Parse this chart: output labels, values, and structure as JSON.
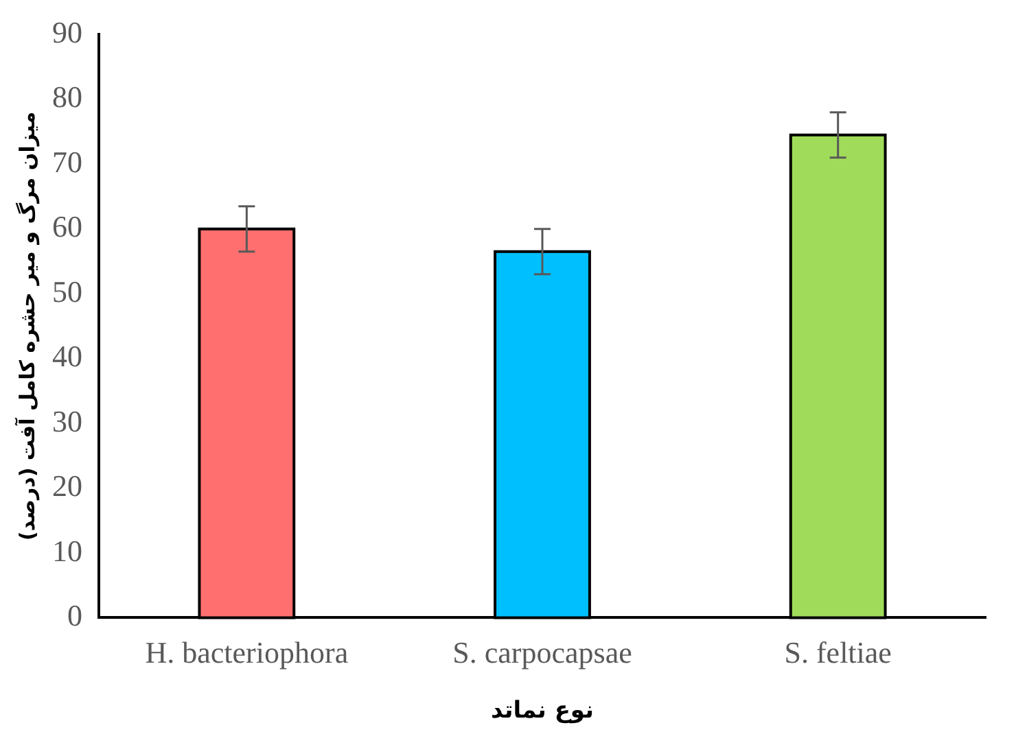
{
  "chart_data": {
    "type": "bar",
    "xlabel": "نوع نماتد",
    "ylabel": "میزان مرگ و میر حشره کامل آفت (درصد)",
    "categories": [
      "H. bacteriophora",
      "S. carpocapsae",
      "S. feltiae"
    ],
    "values": [
      60,
      56.5,
      74.5
    ],
    "errors": [
      3.5,
      3.5,
      3.5
    ],
    "colors": [
      "#ff6f6f",
      "#00bfff",
      "#a0dc5a"
    ],
    "ylim": [
      0,
      90
    ],
    "yticks": [
      0,
      10,
      20,
      30,
      40,
      50,
      60,
      70,
      80,
      90
    ],
    "grid": false
  }
}
